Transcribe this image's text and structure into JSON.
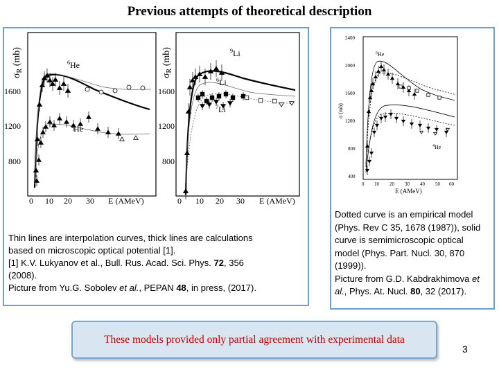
{
  "slide": {
    "title": "Previous attempts of theoretical description",
    "page_number": "3",
    "note": "These models provided only partial agreement with experimental data"
  },
  "left_figure": {
    "panel_a": {
      "ylabel_sym": "σ",
      "ylabel_sub": "R",
      "ylabel_unit": "(mb)",
      "yticks": [
        "1600",
        "1200",
        "800"
      ],
      "xticks": [
        "0",
        "10",
        "20",
        "30"
      ],
      "xlabel": "E (AMeV)",
      "label_upper": "He",
      "label_upper_sup": "6",
      "label_lower": "He",
      "label_lower_sup": "4"
    },
    "panel_b": {
      "ylabel_sym": "σ",
      "ylabel_sub": "R",
      "ylabel_unit": "(mb)",
      "yticks": [
        "1600",
        "1200",
        "800"
      ],
      "xticks": [
        "0",
        "10",
        "20",
        "30"
      ],
      "xlabel": "E (AMeV)",
      "label_top": "Li",
      "label_top_sup": "9",
      "label_mid": "Li",
      "label_mid_sup": "6",
      "label_bot": "Li",
      "label_bot_sup": "7"
    }
  },
  "left_caption": {
    "line1": "Thin lines are interpolation curves, thick lines are calculations",
    "line2": "based on microscopic optical potential [1].",
    "line3a": "[1] K.V.  Lukyanov et al., Bull. Rus. Acad. Sci. Phys. ",
    "line3b": "72",
    "line3c": ", 356",
    "line4": "(2008).",
    "line5a": "Picture from Yu.G. Sobolev ",
    "line5b": "et al.",
    "line5c": ", PEPAN ",
    "line5d": "48",
    "line5e": ", in press, (2017)."
  },
  "right_figure": {
    "ylabel": "σ (mb)",
    "yticks": [
      "2400",
      "2000",
      "1600",
      "1200",
      "800",
      "400"
    ],
    "xticks": [
      "0",
      "10",
      "20",
      "30",
      "40",
      "50",
      "60"
    ],
    "xlabel": "E (AMeV)",
    "label_top": "He",
    "label_top_sup": "6",
    "label_bottom": "He",
    "label_bottom_sup": "4"
  },
  "right_caption": {
    "line1": "Dotted curve is an empirical model",
    "line2": "(Phys. Rev C 35, 1678 (1987)), solid",
    "line3": "curve is  semimicroscopic optical",
    "line4": "model   (Phys.  Part.  Nucl.  30,  870",
    "line5": "(1999)).",
    "line6": "Picture from G.D. Kabdrakhimova ",
    "line6b": "et",
    "line7a": "al.",
    "line7b": ", Phys. At. Nucl. ",
    "line7c": "80",
    "line7d": ", 32 (2017)."
  }
}
